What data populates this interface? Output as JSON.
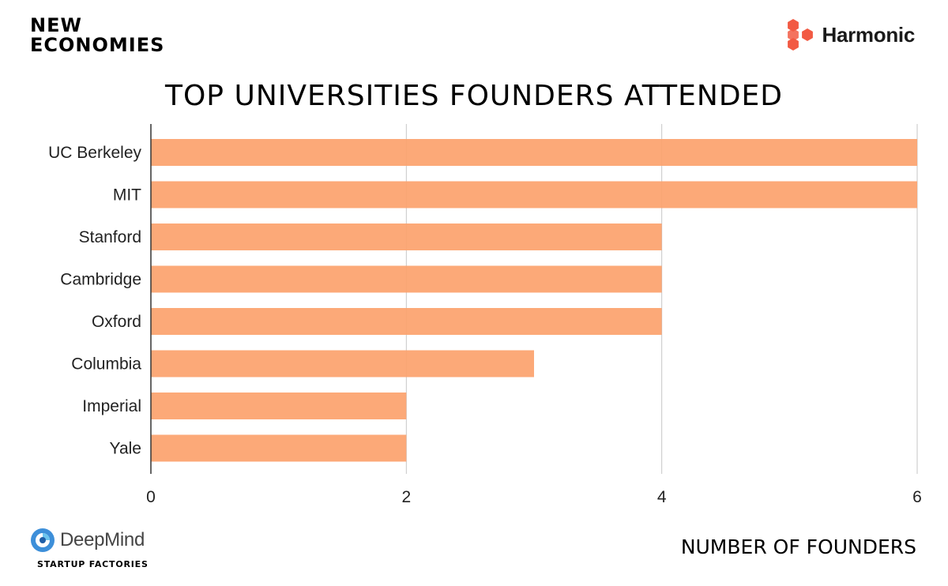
{
  "branding": {
    "top_left_line1": "NEW",
    "top_left_line2": "ECONOMIES",
    "top_right": "Harmonic",
    "bottom_left": "DeepMind",
    "bottom_left_sub": "STARTUP FACTORIES"
  },
  "chart_data": {
    "type": "bar",
    "orientation": "horizontal",
    "title": "TOP UNIVERSITIES FOUNDERS ATTENDED",
    "xlabel": "NUMBER OF FOUNDERS",
    "ylabel": "",
    "categories": [
      "UC Berkeley",
      "MIT",
      "Stanford",
      "Cambridge",
      "Oxford",
      "Columbia",
      "Imperial",
      "Yale"
    ],
    "values": [
      6,
      6,
      4,
      4,
      4,
      3,
      2,
      2
    ],
    "xlim": [
      0,
      6
    ],
    "xticks": [
      "0",
      "2",
      "4",
      "6"
    ],
    "grid": true,
    "bar_color": "#fca26c",
    "grid_color": "#c6c6c6"
  },
  "colors": {
    "harmonic_logo": "#f25a43",
    "deepmind_logo": "#3d8fd9"
  }
}
